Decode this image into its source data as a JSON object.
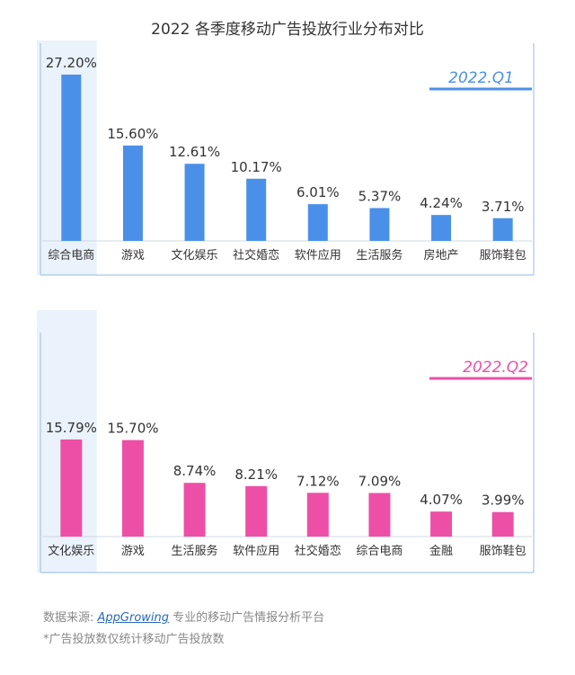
{
  "title": "2022 各季度移动广告投放行业分布对比",
  "chart_data": [
    {
      "type": "bar",
      "title": "2022.Q1",
      "categories": [
        "综合电商",
        "游戏",
        "文化娱乐",
        "社交婚恋",
        "软件应用",
        "生活服务",
        "房地产",
        "服饰鞋包"
      ],
      "values": [
        27.2,
        15.6,
        12.61,
        10.17,
        6.01,
        5.37,
        4.24,
        3.71
      ],
      "value_labels": [
        "27.20%",
        "15.60%",
        "12.61%",
        "10.17%",
        "6.01%",
        "5.37%",
        "4.24%",
        "3.71%"
      ],
      "color": "#4a90e8",
      "highlight_index": 0
    },
    {
      "type": "bar",
      "title": "2022.Q2",
      "categories": [
        "文化娱乐",
        "游戏",
        "生活服务",
        "软件应用",
        "社交婚恋",
        "综合电商",
        "金融",
        "服饰鞋包"
      ],
      "values": [
        15.79,
        15.7,
        8.74,
        8.21,
        7.12,
        7.09,
        4.07,
        3.99
      ],
      "value_labels": [
        "15.79%",
        "15.70%",
        "8.74%",
        "8.21%",
        "7.12%",
        "7.09%",
        "4.07%",
        "3.99%"
      ],
      "color": "#ee4fa6",
      "highlight_index": 0
    }
  ],
  "footer": {
    "source_prefix": "数据来源: ",
    "source_brand": "AppGrowing",
    "source_suffix": " 专业的移动广告情报分析平台",
    "note": "*广告投放数仅统计移动广告投放数"
  }
}
